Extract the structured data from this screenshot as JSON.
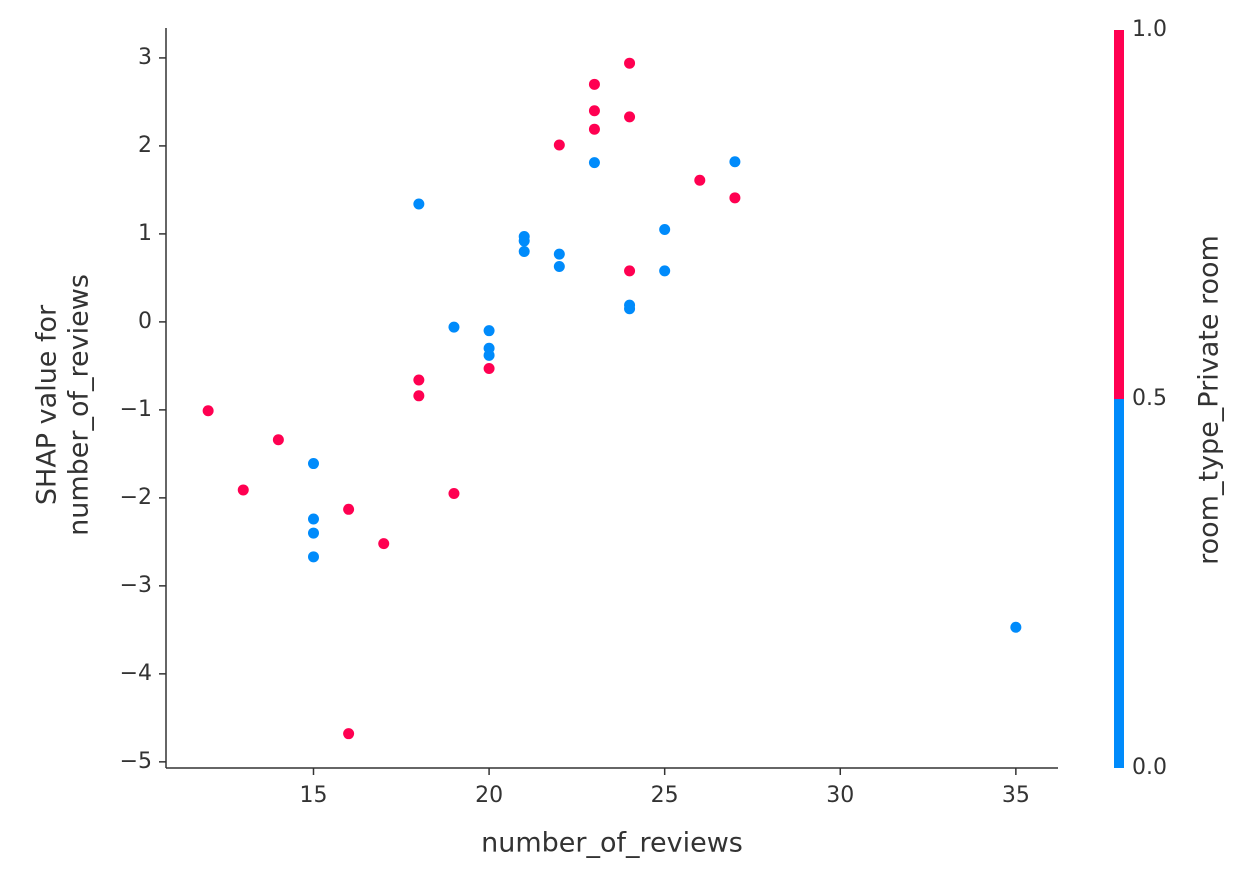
{
  "chart_data": {
    "type": "scatter",
    "xlabel": "number_of_reviews",
    "ylabel": [
      "SHAP value for",
      "number_of_reviews"
    ],
    "x": [
      12,
      13,
      14,
      16,
      16,
      17,
      18,
      18,
      19,
      20,
      22,
      23,
      23,
      23,
      24,
      24,
      24,
      26,
      27,
      15,
      15,
      15,
      15,
      18,
      19,
      20,
      20,
      20,
      21,
      21,
      21,
      22,
      22,
      23,
      24,
      24,
      25,
      25,
      27,
      35
    ],
    "values": [
      -1.01,
      -1.91,
      -1.34,
      -2.13,
      -4.68,
      -2.52,
      -0.66,
      -0.84,
      -1.95,
      -0.53,
      2.01,
      2.7,
      2.4,
      2.19,
      2.94,
      2.33,
      0.58,
      1.61,
      1.41,
      -1.61,
      -2.24,
      -2.4,
      -2.67,
      1.34,
      -0.06,
      -0.1,
      -0.3,
      -0.38,
      0.97,
      0.92,
      0.8,
      0.77,
      0.63,
      1.81,
      0.19,
      0.15,
      1.05,
      0.58,
      1.82,
      -3.47
    ],
    "color_values": [
      1,
      1,
      1,
      1,
      1,
      1,
      1,
      1,
      1,
      1,
      1,
      1,
      1,
      1,
      1,
      1,
      1,
      1,
      1,
      0,
      0,
      0,
      0,
      0,
      0,
      0,
      0,
      0,
      0,
      0,
      0,
      0,
      0,
      0,
      0,
      0,
      0,
      0,
      0,
      0
    ],
    "xlim": [
      10.8,
      36.2
    ],
    "xticks": [
      15,
      20,
      25,
      30,
      35
    ],
    "ylim": [
      -5.07,
      3.34
    ],
    "yticks": [
      {
        "value": -5,
        "label": "−5"
      },
      {
        "value": -4,
        "label": "−4"
      },
      {
        "value": -3,
        "label": "−3"
      },
      {
        "value": -2,
        "label": "−2"
      },
      {
        "value": -1,
        "label": "−1"
      },
      0,
      1,
      2,
      3
    ],
    "colorbar": {
      "label": "room_type_Private room",
      "lim": [
        0,
        1
      ],
      "colors": [
        "#008bfb",
        "#ff0051"
      ],
      "ticks": [
        {
          "value": 0,
          "label": "0.0"
        },
        {
          "value": 0.5,
          "label": "0.5"
        },
        {
          "value": 1,
          "label": "1.0"
        }
      ]
    }
  }
}
